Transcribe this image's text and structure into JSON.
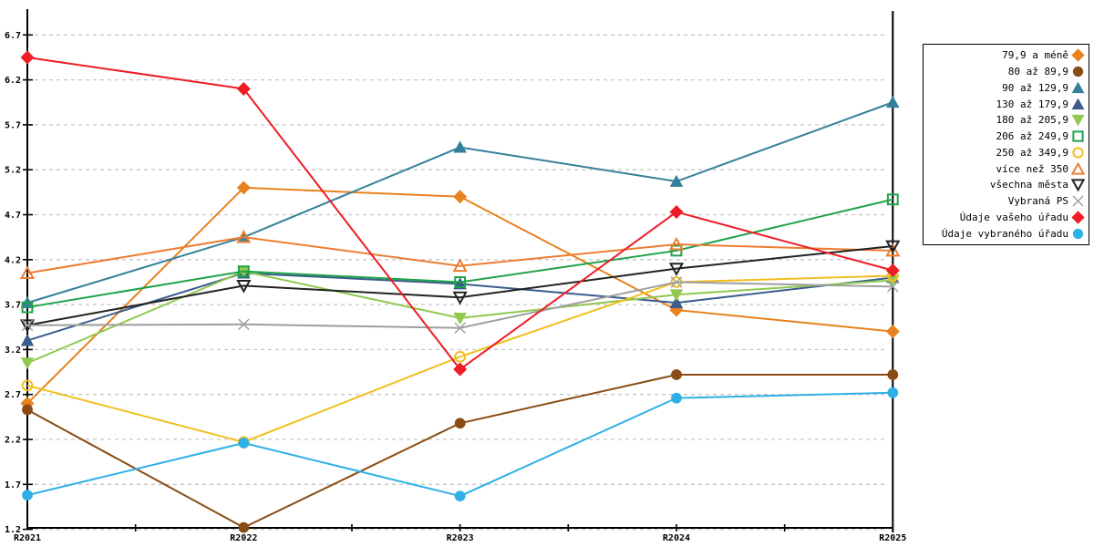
{
  "page": {
    "background": "#FFFFFF",
    "axis_color": "#000000",
    "gridline_color": "#C6C6C6"
  },
  "chart_data": {
    "type": "line",
    "title": "",
    "xlabel": "",
    "ylabel": "",
    "categories": [
      "R2021",
      "R2022",
      "R2023",
      "R2024",
      "R2025"
    ],
    "ylim": [
      1.2,
      6.7
    ],
    "ytick_labels": [
      "1.2",
      "1.7",
      "2.2",
      "2.7",
      "3.2",
      "3.7",
      "4.2",
      "4.7",
      "5.2",
      "5.7",
      "6.2",
      "6.7"
    ],
    "grid": "horizontal-dashed",
    "legend_position": "right-boxed",
    "minor_ticks_between_categories": true,
    "series": [
      {
        "name": "79,9 a méně",
        "color": "#E8821E",
        "marker": "diamond",
        "marker_filled": true,
        "values": [
          2.6,
          5.0,
          4.9,
          3.64,
          3.4
        ]
      },
      {
        "name": "80 až 89,9",
        "color": "#8B4B14",
        "marker": "circle",
        "marker_filled": true,
        "values": [
          2.53,
          1.22,
          2.38,
          2.92,
          2.92
        ]
      },
      {
        "name": "90 až 129,9",
        "color": "#35809A",
        "marker": "triangle-up",
        "marker_filled": true,
        "values": [
          3.72,
          4.45,
          5.45,
          5.07,
          5.95
        ]
      },
      {
        "name": "130 až 179,9",
        "color": "#3A5C8C",
        "marker": "triangle-up",
        "marker_filled": true,
        "values": [
          3.3,
          4.05,
          3.93,
          3.72,
          4.0
        ]
      },
      {
        "name": "180 až 205,9",
        "color": "#90C850",
        "marker": "triangle-down",
        "marker_filled": true,
        "values": [
          3.05,
          4.07,
          3.55,
          3.81,
          3.97
        ]
      },
      {
        "name": "206 až 249,9",
        "color": "#1FA349",
        "marker": "square",
        "marker_filled": false,
        "values": [
          3.67,
          4.07,
          3.95,
          4.3,
          4.87
        ]
      },
      {
        "name": "250 až 349,9",
        "color": "#F0BE1E",
        "marker": "circle",
        "marker_filled": false,
        "values": [
          2.8,
          2.17,
          3.12,
          3.95,
          4.02
        ]
      },
      {
        "name": "více než 350",
        "color": "#ED7D31",
        "marker": "triangle-up",
        "marker_filled": false,
        "values": [
          4.05,
          4.45,
          4.13,
          4.37,
          4.3
        ]
      },
      {
        "name": "všechna města",
        "color": "#222222",
        "marker": "triangle-down",
        "marker_filled": false,
        "values": [
          3.47,
          3.91,
          3.78,
          4.1,
          4.35
        ]
      },
      {
        "name": "Vybraná PS",
        "color": "#9E9E9E",
        "marker": "x",
        "marker_filled": false,
        "values": [
          3.47,
          3.48,
          3.44,
          3.95,
          3.9
        ]
      },
      {
        "name": "Údaje vašeho úřadu",
        "color": "#EE1C25",
        "marker": "diamond",
        "marker_filled": true,
        "values": [
          6.45,
          6.1,
          2.98,
          4.73,
          4.08
        ]
      },
      {
        "name": "Údaje vybraného úřadu",
        "color": "#2EB0E6",
        "marker": "circle",
        "marker_filled": true,
        "values": [
          1.58,
          2.16,
          1.57,
          2.66,
          2.72
        ]
      }
    ]
  }
}
